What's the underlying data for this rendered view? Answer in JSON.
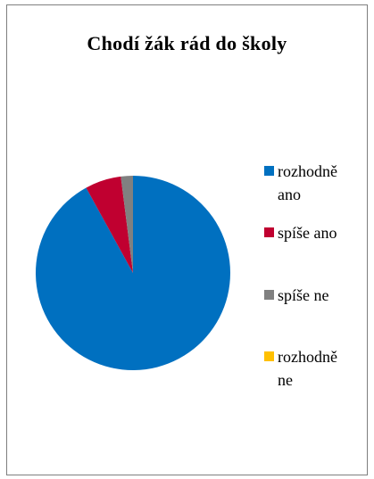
{
  "chart_data": {
    "type": "pie",
    "title": "Chodí žák rád do školy",
    "categories": [
      "rozhodně ano",
      "spíše ano",
      "spíše ne",
      "rozhodně ne"
    ],
    "values": [
      92,
      6,
      2,
      0
    ],
    "colors": [
      "#0070c0",
      "#c00030",
      "#808080",
      "#ffc000"
    ],
    "legend_position": "right",
    "start_angle_deg": 0,
    "direction": "clockwise"
  }
}
